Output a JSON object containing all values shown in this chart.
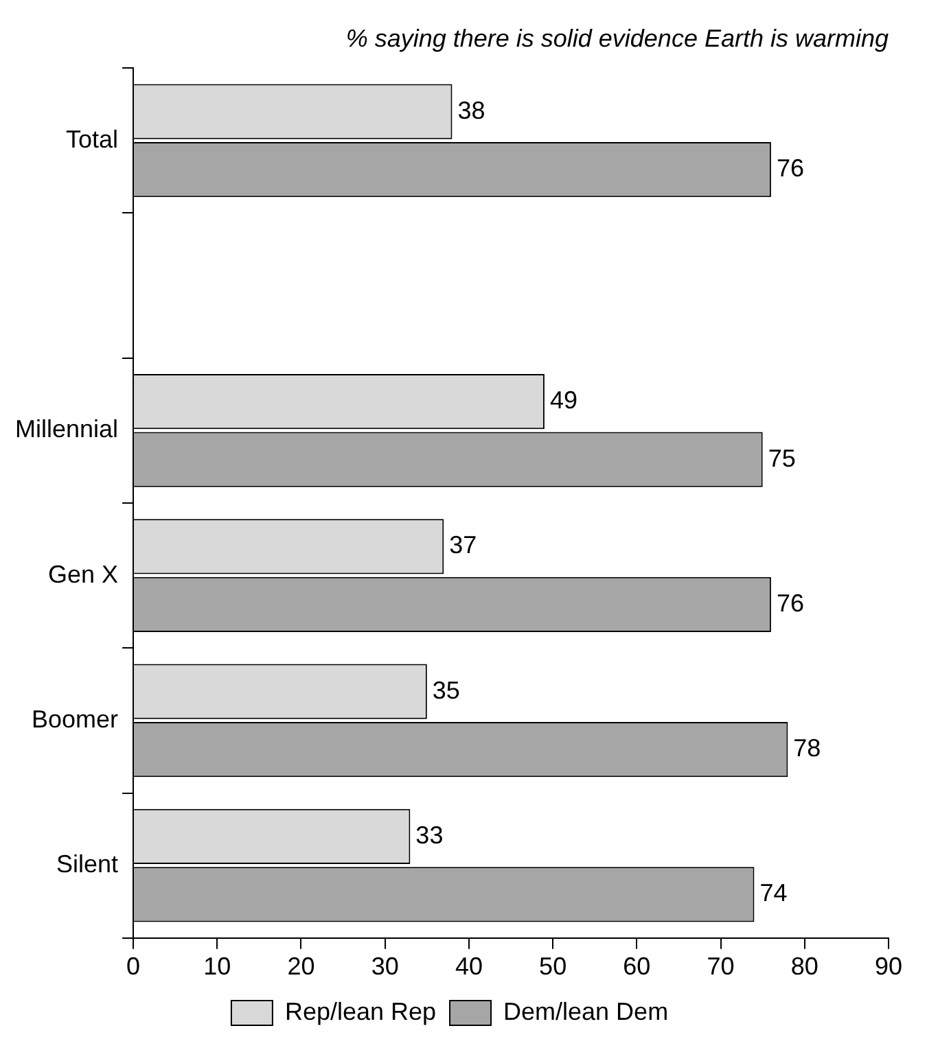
{
  "chart_data": {
    "type": "bar",
    "orientation": "horizontal",
    "title": "% saying there is solid evidence Earth is warming",
    "categories": [
      "Total",
      null,
      "Millennial",
      "Gen X",
      "Boomer",
      "Silent"
    ],
    "series": [
      {
        "name": "Rep/lean Rep",
        "color": "#d9d9d9",
        "values": [
          38,
          null,
          49,
          37,
          35,
          33
        ]
      },
      {
        "name": "Dem/lean Dem",
        "color": "#a6a6a6",
        "values": [
          76,
          null,
          75,
          76,
          78,
          74
        ]
      }
    ],
    "xlim": [
      0,
      90
    ],
    "xticks": [
      0,
      10,
      20,
      30,
      40,
      50,
      60,
      70,
      80,
      90
    ],
    "grid": false,
    "legend": "bottom",
    "data_labels": true
  }
}
